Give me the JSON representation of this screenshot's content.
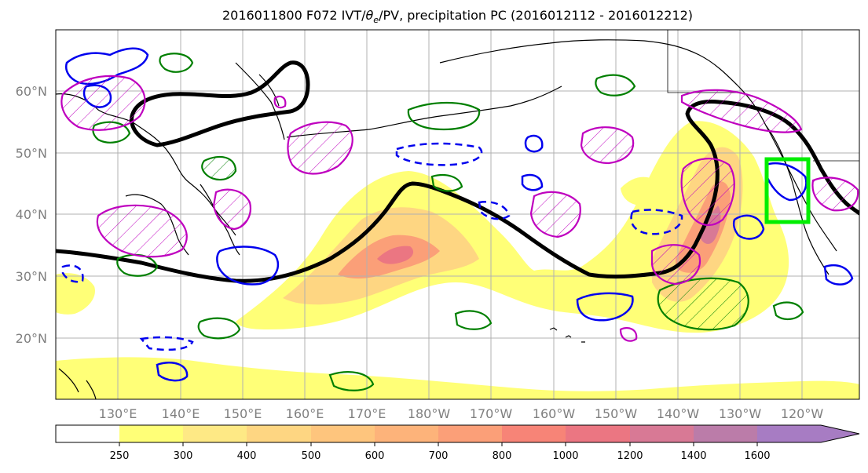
{
  "title": {
    "prefix": "2016011800 F072 IVT/",
    "theta_symbol": "θ",
    "theta_sub": "e",
    "suffix": "/PV, precipitation PC (2016012112 - 2016012212)"
  },
  "lat_labels": [
    "60°N",
    "50°N",
    "40°N",
    "30°N",
    "20°N"
  ],
  "lon_labels": [
    "130°E",
    "140°E",
    "150°E",
    "160°E",
    "170°E",
    "180°W",
    "170°W",
    "160°W",
    "150°W",
    "140°W",
    "130°W",
    "120°W"
  ],
  "colorbar": {
    "ticks": [
      "250",
      "300",
      "400",
      "500",
      "600",
      "700",
      "800",
      "1000",
      "1200",
      "1400",
      "1600"
    ],
    "colors": [
      "#ffff77",
      "#fee985",
      "#fed682",
      "#fec57d",
      "#fdb37a",
      "#fb9f78",
      "#f78477",
      "#eb7682",
      "#d87995",
      "#bb7ca9",
      "#a77cc3"
    ]
  },
  "colors": {
    "black_contour": "#000000",
    "blue_contour": "#0000ee",
    "green_contour": "#007f00",
    "magenta_contour": "#bf00bf",
    "target_box": "#00ee00",
    "grid": "#b0b0b0",
    "coastline": "#000000"
  }
}
